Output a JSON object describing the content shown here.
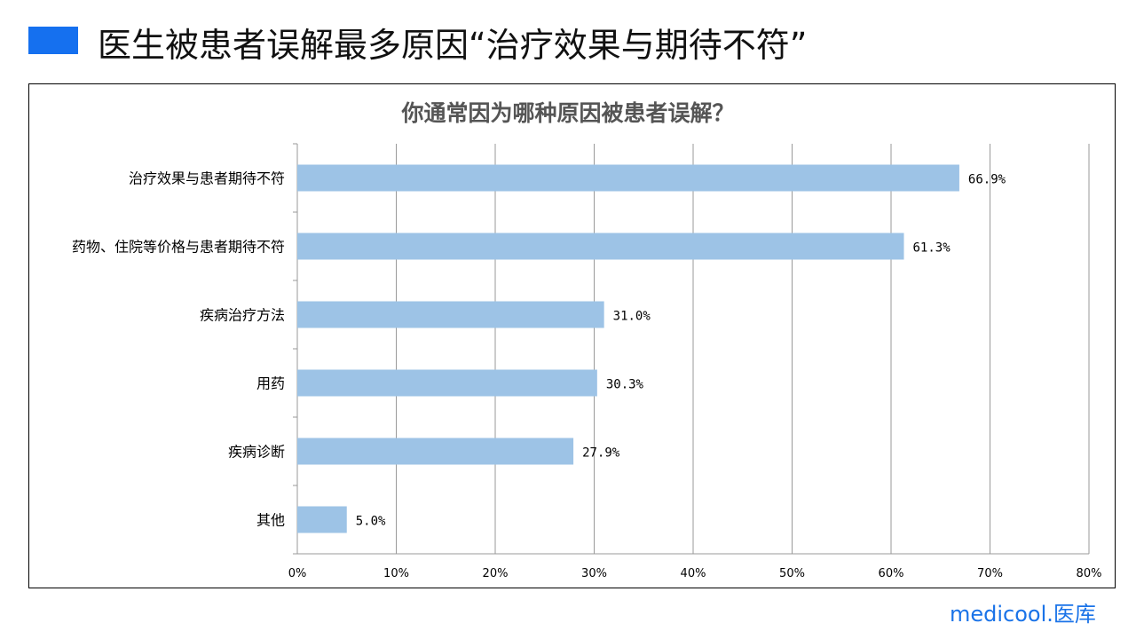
{
  "header": {
    "title": "医生被患者误解最多原因“治疗效果与期待不符”",
    "accent_color": "#1570ef"
  },
  "chart_data": {
    "type": "bar",
    "orientation": "horizontal",
    "title": "你通常因为哪种原因被患者误解？",
    "categories": [
      "治疗效果与患者期待不符",
      "药物、住院等价格与患者期待不符",
      "疾病治疗方法",
      "用药",
      "疾病诊断",
      "其他"
    ],
    "values": [
      66.9,
      61.3,
      31.0,
      30.3,
      27.9,
      5.0
    ],
    "data_labels": [
      "66.9%",
      "61.3%",
      "31.0%",
      "30.3%",
      "27.9%",
      "5.0%"
    ],
    "xlim": [
      0,
      80
    ],
    "x_ticks": [
      "0%",
      "10%",
      "20%",
      "30%",
      "40%",
      "50%",
      "60%",
      "70%",
      "80%"
    ],
    "grid": true,
    "bar_color": "#9dc3e6"
  },
  "logo": {
    "text": "medicool.医库"
  }
}
